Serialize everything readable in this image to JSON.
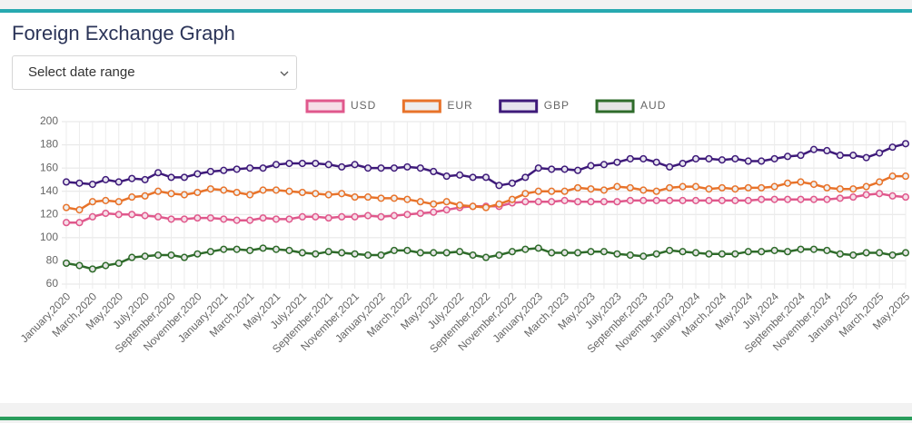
{
  "page": {
    "select_placeholder": "Select date range"
  },
  "chart_data": {
    "type": "line",
    "title": "Foreign Exchange Graph",
    "categories": [
      "January,2020",
      null,
      "March,2020",
      null,
      "May,2020",
      null,
      "July,2020",
      null,
      "September,2020",
      null,
      "November,2020",
      null,
      "January,2021",
      null,
      "March,2021",
      null,
      "May,2021",
      null,
      "July,2021",
      null,
      "September,2021",
      null,
      "November,2021",
      null,
      "January,2022",
      null,
      "March,2022",
      null,
      "May,2022",
      null,
      "July,2022",
      null,
      "September,2022",
      null,
      "November,2022",
      null,
      "January,2023",
      null,
      "March,2023",
      null,
      "May,2023",
      null,
      "July,2023",
      null,
      "September,2023",
      null,
      "November,2023",
      null,
      "January,2024",
      null,
      "March,2024",
      null,
      "May,2024",
      null,
      "July,2024",
      null,
      "September,2024",
      null,
      "November,2024",
      null,
      "January,2025",
      null,
      "March,2025",
      null,
      "May,2025"
    ],
    "series": [
      {
        "name": "USD",
        "color": "#e0588c",
        "fill": "#f6dde7",
        "values": [
          113,
          113,
          118,
          121,
          120,
          120,
          119,
          118,
          116,
          116,
          117,
          117,
          116,
          115,
          115,
          117,
          116,
          116,
          118,
          118,
          117,
          118,
          118,
          119,
          118,
          119,
          120,
          121,
          122,
          124,
          126,
          127,
          127,
          127,
          130,
          131,
          131,
          131,
          132,
          131,
          131,
          131,
          131,
          132,
          132,
          132,
          132,
          132,
          132,
          132,
          132,
          132,
          132,
          133,
          133,
          133,
          133,
          133,
          133,
          134,
          135,
          137,
          138,
          136,
          135
        ]
      },
      {
        "name": "EUR",
        "color": "#e8732a",
        "fill": "#eeeeee",
        "values": [
          126,
          124,
          131,
          132,
          131,
          135,
          136,
          140,
          138,
          137,
          139,
          142,
          141,
          139,
          137,
          141,
          141,
          140,
          139,
          138,
          137,
          138,
          135,
          135,
          134,
          134,
          133,
          131,
          129,
          131,
          128,
          127,
          126,
          129,
          133,
          138,
          140,
          140,
          140,
          143,
          142,
          141,
          144,
          143,
          141,
          140,
          143,
          144,
          144,
          142,
          143,
          142,
          143,
          143,
          144,
          147,
          148,
          146,
          143,
          142,
          142,
          144,
          148,
          153,
          153
        ]
      },
      {
        "name": "GBP",
        "color": "#3e1a7a",
        "fill": "#e6e4ee",
        "values": [
          148,
          147,
          146,
          150,
          148,
          151,
          150,
          156,
          152,
          152,
          155,
          157,
          158,
          159,
          160,
          160,
          163,
          164,
          164,
          164,
          163,
          161,
          163,
          160,
          160,
          160,
          161,
          160,
          157,
          153,
          154,
          152,
          152,
          145,
          147,
          152,
          160,
          159,
          159,
          158,
          162,
          163,
          165,
          168,
          168,
          165,
          161,
          164,
          168,
          168,
          167,
          168,
          166,
          166,
          168,
          170,
          171,
          176,
          175,
          171,
          171,
          169,
          173,
          178,
          181
        ]
      },
      {
        "name": "AUD",
        "color": "#2e6b2a",
        "fill": "#e4e4e4",
        "values": [
          78,
          76,
          73,
          76,
          78,
          83,
          84,
          85,
          85,
          83,
          86,
          88,
          90,
          90,
          89,
          91,
          90,
          89,
          87,
          86,
          88,
          87,
          86,
          85,
          85,
          89,
          89,
          87,
          87,
          87,
          88,
          85,
          83,
          85,
          88,
          90,
          91,
          87,
          87,
          87,
          88,
          88,
          86,
          85,
          84,
          86,
          89,
          88,
          87,
          86,
          86,
          86,
          88,
          88,
          89,
          88,
          90,
          90,
          89,
          86,
          85,
          87,
          87,
          85,
          87
        ]
      }
    ],
    "ylim": [
      60,
      200
    ],
    "yticks": [
      60,
      80,
      100,
      120,
      140,
      160,
      180,
      200
    ],
    "grid": true,
    "legend": "top"
  }
}
